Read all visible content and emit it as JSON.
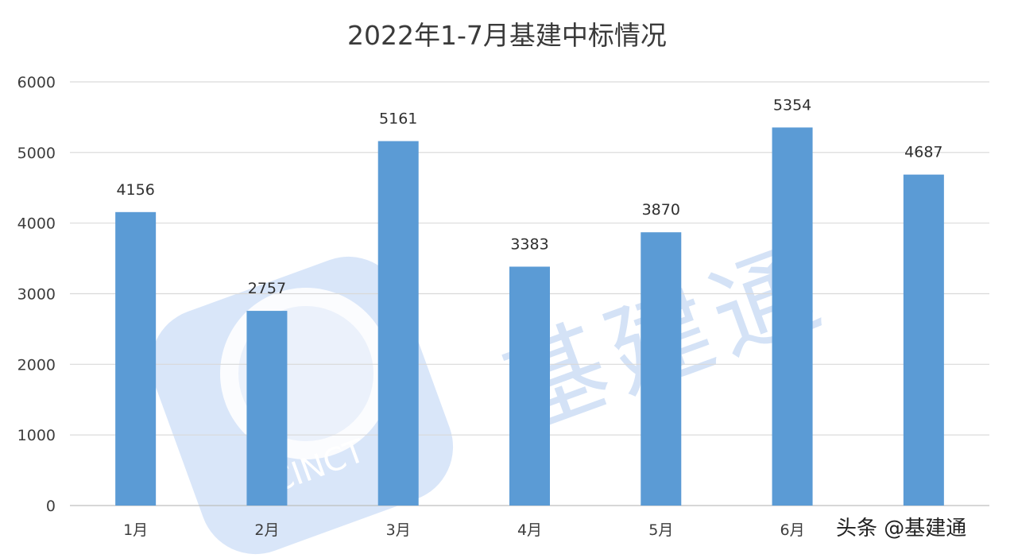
{
  "chart_data": {
    "type": "bar",
    "title": "2022年1-7月基建中标情况",
    "categories": [
      "1月",
      "2月",
      "3月",
      "4月",
      "5月",
      "6月",
      ""
    ],
    "values": [
      4156,
      2757,
      5161,
      3383,
      3870,
      5354,
      4687
    ],
    "ylim": [
      0,
      6000
    ],
    "yticks": [
      0,
      1000,
      2000,
      3000,
      4000,
      5000,
      6000
    ],
    "grid": true,
    "legend": "none",
    "bar_color": "#5b9bd5",
    "xlabel": "",
    "ylabel": ""
  },
  "watermark": {
    "text": "基建通",
    "logo_text": "CINCT",
    "color": "#3f7fd9"
  },
  "credit": {
    "text": "头条 @基建通"
  }
}
